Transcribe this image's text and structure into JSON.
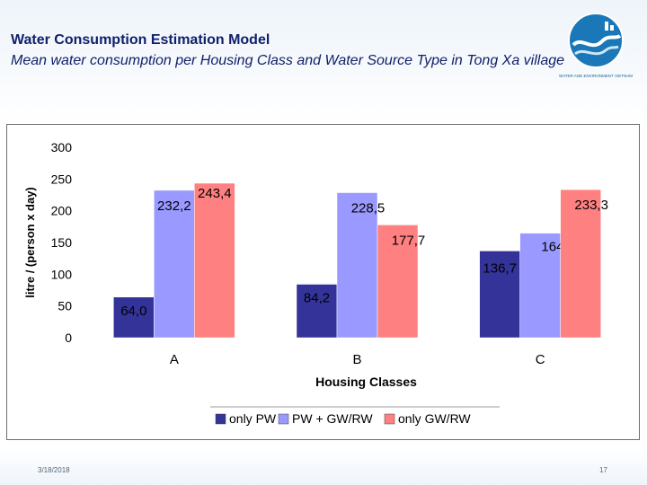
{
  "slide": {
    "title": "Water Consumption Estimation Model",
    "subtitle": "Mean water consumption per Housing Class and Water Source Type in Tong Xa village",
    "date": "3/18/2018",
    "page_number": "17",
    "logo_text": "WATER AND ENVIRONMENT VIETNAM"
  },
  "chart_data": {
    "type": "bar",
    "title": "",
    "categories": [
      "A",
      "B",
      "C"
    ],
    "series": [
      {
        "name": "only PW",
        "color": "#333399",
        "values": [
          64.0,
          84.2,
          136.7
        ],
        "labels": [
          "64,0",
          "84,2",
          "136,7"
        ]
      },
      {
        "name": "PW + GW/RW",
        "color": "#9999ff",
        "values": [
          232.2,
          228.5,
          164.7
        ],
        "labels": [
          "232,2",
          "228,5",
          "164,7"
        ]
      },
      {
        "name": "only GW/RW",
        "color": "#ff8080",
        "values": [
          243.4,
          177.7,
          233.3
        ],
        "labels": [
          "243,4",
          "177,7",
          "233,3"
        ]
      }
    ],
    "xlabel": "Housing Classes",
    "ylabel": "litre / (person x day)",
    "ylim": [
      0,
      300
    ],
    "yticks": [
      0,
      50,
      100,
      150,
      200,
      250,
      300
    ],
    "grid": false,
    "legend_position": "bottom"
  }
}
